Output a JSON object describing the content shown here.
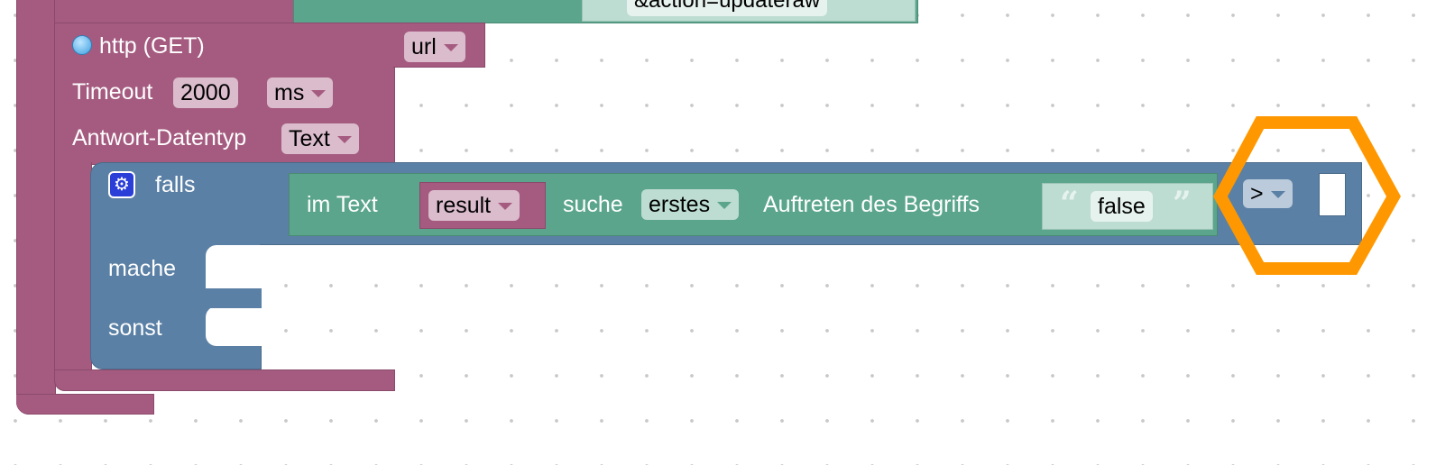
{
  "workspace": {
    "top_string": "&action=updateraw",
    "http_block": {
      "title": "http (GET)",
      "icon": "globe-icon",
      "url_var": "url",
      "timeout_label": "Timeout",
      "timeout_value": "2000",
      "timeout_unit": "ms",
      "response_type_label": "Antwort-Datentyp",
      "response_type": "Text"
    },
    "if_block": {
      "icon": "gear-icon",
      "if_label": "falls",
      "do_label": "mache",
      "else_label": "sonst"
    },
    "text_find_block": {
      "in_text_label": "im Text",
      "var": "result",
      "search_label": "suche",
      "mode": "erstes",
      "occurrence_label": "Auftreten des Begriffs",
      "search_string": "false"
    },
    "compare": {
      "operator": ">"
    },
    "highlight_color": "#ff9800",
    "colors": {
      "procedure": "#a55b80",
      "logic": "#5b80a5",
      "text": "#5ba58c"
    }
  }
}
